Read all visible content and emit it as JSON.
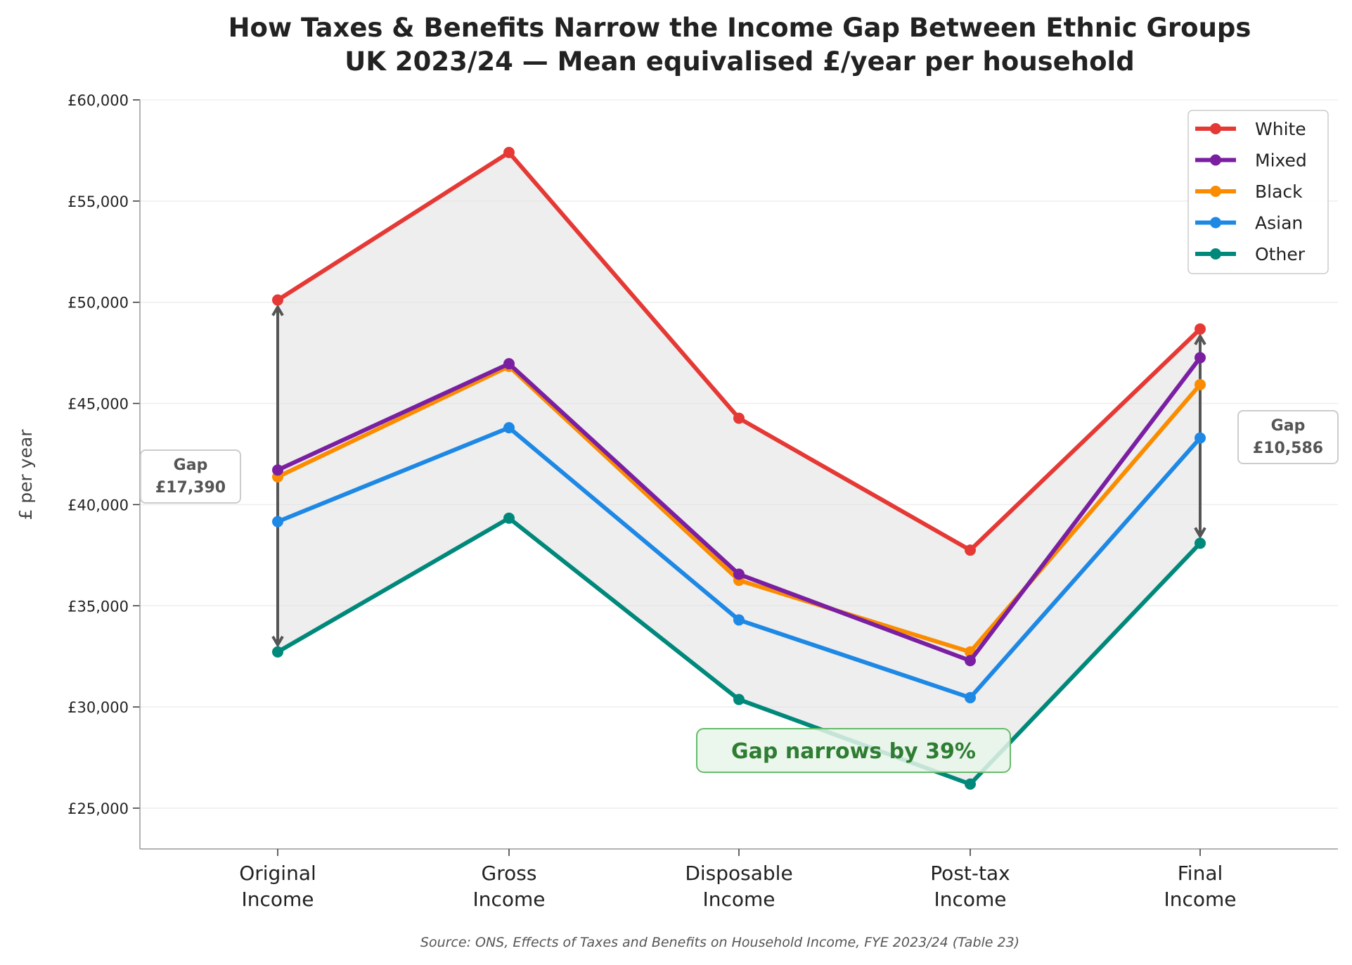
{
  "chart_data": {
    "type": "line",
    "title": "How Taxes & Benefits Narrow the Income Gap Between Ethnic Groups",
    "subtitle": "UK 2023/24 — Mean equivalised £/year per household",
    "xlabel": "",
    "ylabel": "£ per year",
    "categories": [
      [
        "Original",
        "Income"
      ],
      [
        "Gross",
        "Income"
      ],
      [
        "Disposable",
        "Income"
      ],
      [
        "Post-tax",
        "Income"
      ],
      [
        "Final",
        "Income"
      ]
    ],
    "ylim": [
      23000,
      60000
    ],
    "yticks": [
      25000,
      30000,
      35000,
      40000,
      45000,
      50000,
      55000,
      60000
    ],
    "ytick_labels": [
      "£25,000",
      "£30,000",
      "£35,000",
      "£40,000",
      "£45,000",
      "£50,000",
      "£55,000",
      "£60,000"
    ],
    "grid": "horizontal",
    "legend_position": "top-right",
    "series": [
      {
        "name": "White",
        "color": "#e53935",
        "values": [
          50110,
          57400,
          44270,
          37750,
          48676
        ]
      },
      {
        "name": "Mixed",
        "color": "#7b1fa2",
        "values": [
          41710,
          46960,
          36560,
          32290,
          47260
        ]
      },
      {
        "name": "Black",
        "color": "#fb8c00",
        "values": [
          41370,
          46830,
          36260,
          32720,
          45930
        ]
      },
      {
        "name": "Asian",
        "color": "#1e88e5",
        "values": [
          39160,
          43800,
          34300,
          30460,
          43290
        ]
      },
      {
        "name": "Other",
        "color": "#00897b",
        "values": [
          32720,
          39330,
          30370,
          26190,
          38090
        ]
      }
    ],
    "annotations": {
      "gap_start": {
        "label": "Gap",
        "value": "£17,390"
      },
      "gap_end": {
        "label": "Gap",
        "value": "£10,586"
      },
      "narrow_note": "Gap narrows by 39%",
      "narrow_color": "#2e7d32"
    },
    "source": "Source: ONS, Effects of Taxes and Benefits on Household Income, FYE 2023/24 (Table 23)"
  }
}
